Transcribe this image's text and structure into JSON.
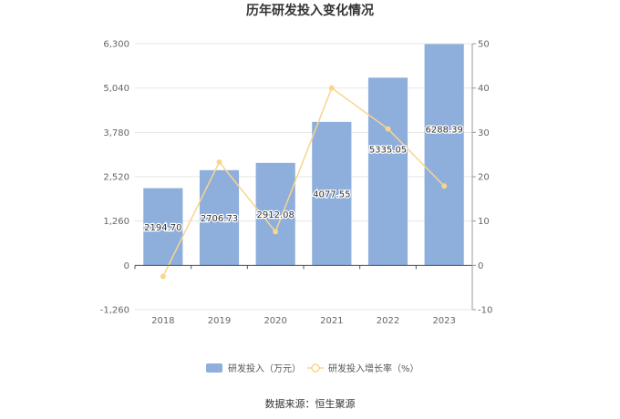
{
  "chart_data": {
    "type": "bar",
    "title": "历年研发投入变化情况",
    "categories": [
      "2018",
      "2019",
      "2020",
      "2021",
      "2022",
      "2023"
    ],
    "series": [
      {
        "name": "研发投入（万元）",
        "type": "bar",
        "axis": "left",
        "values": [
          2194.7,
          2706.73,
          2912.08,
          4077.55,
          5335.05,
          6288.39
        ],
        "labels": [
          "2194.70",
          "2706.73",
          "2912.08",
          "4077.55",
          "5335.05",
          "6288.39"
        ],
        "color": "#8eaedc"
      },
      {
        "name": "研发投入增长率（%）",
        "type": "line",
        "axis": "right",
        "values": [
          -2.5,
          23.3,
          7.6,
          40.0,
          30.8,
          17.9
        ],
        "color": "#f8d58e"
      }
    ],
    "y_left": {
      "ylim": [
        -1260,
        6300
      ],
      "ticks": [
        "6,300",
        "5,040",
        "3,780",
        "2,520",
        "1,260",
        "0",
        "-1,260"
      ],
      "tick_values": [
        6300,
        5040,
        3780,
        2520,
        1260,
        0,
        -1260
      ]
    },
    "y_right": {
      "ylim": [
        -10,
        50
      ],
      "ticks": [
        "50",
        "40",
        "30",
        "20",
        "10",
        "0",
        "-10"
      ],
      "tick_values": [
        50,
        40,
        30,
        20,
        10,
        0,
        -10
      ]
    },
    "grid": true,
    "legend_position": "bottom-center",
    "source": "数据来源：恒生聚源"
  }
}
